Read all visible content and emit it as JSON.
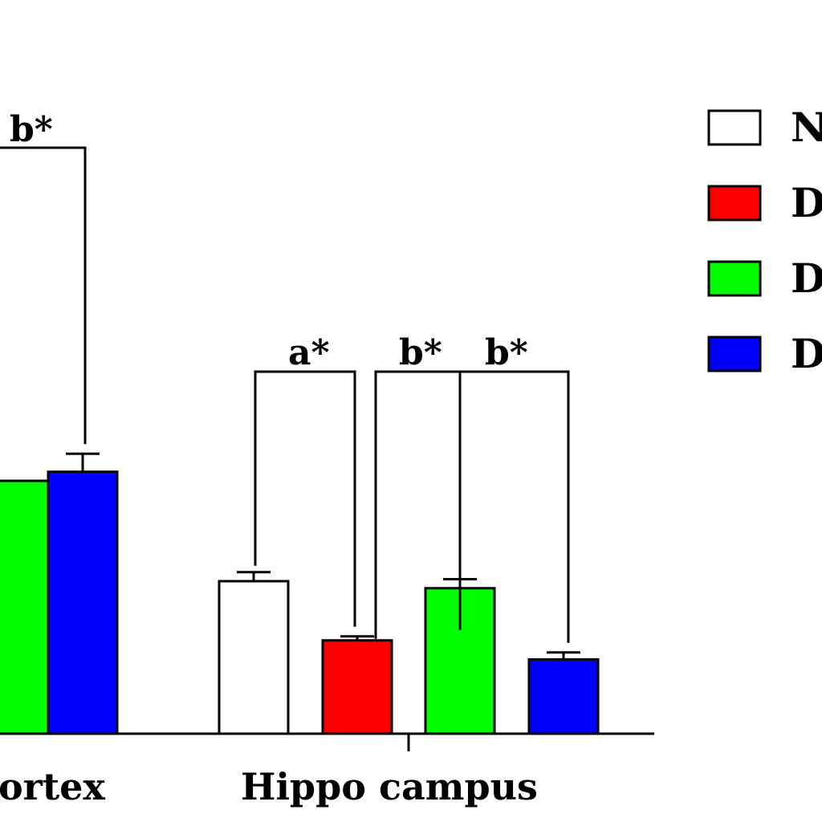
{
  "chart_data": {
    "type": "bar",
    "categories": [
      "ortex",
      "Hippo campus"
    ],
    "series": [
      {
        "name": "N",
        "color": "#ffffff",
        "values": [
          null,
          76
        ],
        "errors": [
          null,
          4.5
        ]
      },
      {
        "name": "D",
        "color": "#ff0000",
        "values": [
          null,
          46.5
        ],
        "errors": [
          null,
          2
        ]
      },
      {
        "name": "D",
        "color": "#00ff00",
        "values": [
          126,
          72.5
        ],
        "errors": [
          null,
          4.5
        ]
      },
      {
        "name": "D",
        "color": "#0000ff",
        "values": [
          130.5,
          37
        ],
        "errors": [
          9,
          3.5
        ]
      }
    ],
    "ylim": [
      0,
      175
    ],
    "grid": false,
    "legend_position": "right",
    "annotations": [
      {
        "text": "b*",
        "group": 0,
        "between": [
          2,
          3
        ]
      },
      {
        "text": "a*",
        "group": 1,
        "between": [
          0,
          1
        ]
      },
      {
        "text": "b*",
        "group": 1,
        "between": [
          1,
          2
        ]
      },
      {
        "text": "b*",
        "group": 1,
        "between": [
          1,
          3
        ]
      }
    ]
  }
}
